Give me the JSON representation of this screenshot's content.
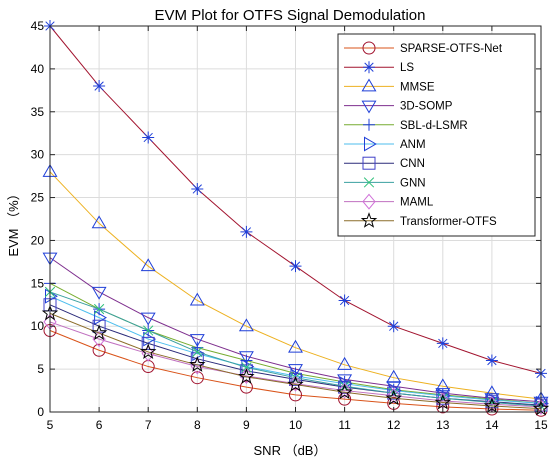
{
  "chart_data": {
    "type": "line",
    "title": "EVM Plot for OTFS Signal Demodulation",
    "xlabel": "SNR （dB）",
    "ylabel": "EVM （%）",
    "xlim": [
      5,
      15
    ],
    "ylim": [
      0,
      45
    ],
    "xticks": [
      "5",
      "6",
      "7",
      "8",
      "9",
      "10",
      "11",
      "12",
      "13",
      "14",
      "15"
    ],
    "yticks": [
      "0",
      "5",
      "10",
      "15",
      "20",
      "25",
      "30",
      "35",
      "40",
      "45"
    ],
    "x": [
      5,
      6,
      7,
      8,
      9,
      10,
      11,
      12,
      13,
      14,
      15
    ],
    "grid": true,
    "legend_position": "top-right",
    "series": [
      {
        "name": "SPARSE-OTFS-Net",
        "marker": "circle",
        "color": "#D95319",
        "marker_color": "#A2142F",
        "values": [
          9.5,
          7.2,
          5.3,
          4.0,
          2.9,
          2.0,
          1.5,
          1.0,
          0.6,
          0.35,
          0.2
        ]
      },
      {
        "name": "LS",
        "marker": "asterisk",
        "color": "#A2142F",
        "marker_color": "#1f3fd8",
        "values": [
          45.0,
          38.0,
          32.0,
          26.0,
          21.0,
          17.0,
          13.0,
          10.0,
          8.0,
          6.0,
          4.5
        ]
      },
      {
        "name": "MMSE",
        "marker": "triangle-up",
        "color": "#EDB120",
        "marker_color": "#1f3fd8",
        "values": [
          28.0,
          22.0,
          17.0,
          13.0,
          10.0,
          7.5,
          5.5,
          4.0,
          3.0,
          2.2,
          1.5
        ]
      },
      {
        "name": "3D-SOMP",
        "marker": "triangle-down",
        "color": "#7E2F8E",
        "marker_color": "#1f3fd8",
        "values": [
          18.0,
          14.0,
          11.0,
          8.5,
          6.5,
          5.0,
          3.8,
          3.0,
          2.2,
          1.6,
          1.2
        ]
      },
      {
        "name": "SBL-d-LSMR",
        "marker": "plus",
        "color": "#77AC30",
        "marker_color": "#1f3fd8",
        "values": [
          15.0,
          12.0,
          9.5,
          7.5,
          6.0,
          4.5,
          3.5,
          2.6,
          2.0,
          1.5,
          1.0
        ]
      },
      {
        "name": "ANM",
        "marker": "triangle-right",
        "color": "#4DBEEE",
        "marker_color": "#1f3fd8",
        "values": [
          13.5,
          11.0,
          8.5,
          6.8,
          5.3,
          4.2,
          3.3,
          2.5,
          1.9,
          1.4,
          1.0
        ]
      },
      {
        "name": "CNN",
        "marker": "square",
        "color": "#2b2b7a",
        "marker_color": "#4040c8",
        "values": [
          12.5,
          10.0,
          8.0,
          6.2,
          4.8,
          3.8,
          2.9,
          2.2,
          1.6,
          1.2,
          0.8
        ]
      },
      {
        "name": "GNN",
        "marker": "x",
        "color": "#3aa0a0",
        "marker_color": "#2fc07a",
        "values": [
          14.0,
          12.0,
          9.5,
          7.0,
          5.2,
          4.0,
          3.0,
          2.2,
          1.6,
          1.1,
          0.7
        ]
      },
      {
        "name": "MAML",
        "marker": "diamond",
        "color": "#c070c0",
        "marker_color": "#d070d8",
        "values": [
          10.5,
          8.5,
          6.8,
          5.3,
          4.2,
          3.3,
          2.5,
          1.9,
          1.3,
          0.9,
          0.6
        ]
      },
      {
        "name": "Transformer-OTFS",
        "marker": "star",
        "color": "#8c6d2a",
        "marker_color": "#000000",
        "values": [
          11.5,
          9.2,
          7.0,
          5.5,
          4.1,
          3.2,
          2.3,
          1.6,
          1.1,
          0.7,
          0.4
        ]
      }
    ]
  }
}
